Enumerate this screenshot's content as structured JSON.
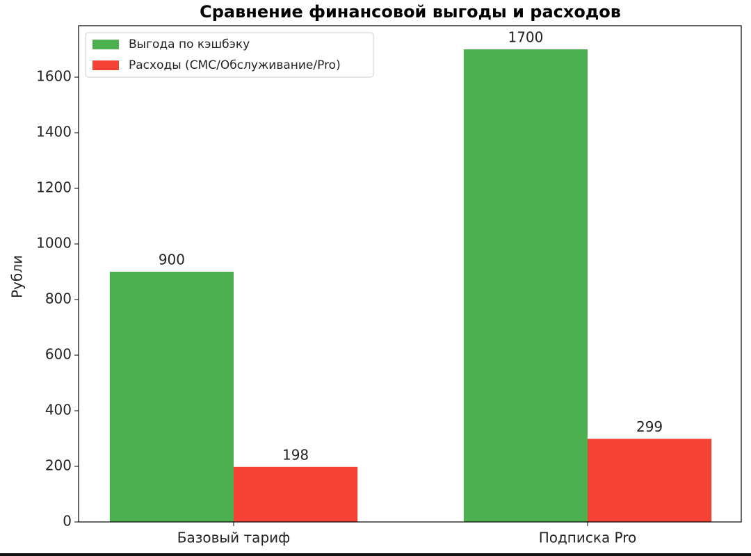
{
  "chart_data": {
    "type": "bar",
    "title": "Сравнение финансовой выгоды и расходов",
    "y_label": "Рубли",
    "categories": [
      "Базовый тариф",
      "Подписка Pro"
    ],
    "series": [
      {
        "name": "Выгода по кэшбэку",
        "color": "#4caf50",
        "values": [
          900,
          1700
        ]
      },
      {
        "name": "Расходы (СМС/Обслуживание/Pro)",
        "color": "#f44336",
        "values": [
          198,
          299
        ]
      }
    ],
    "ylim": [
      0,
      1785
    ],
    "yticks": [
      0,
      200,
      400,
      600,
      800,
      1000,
      1200,
      1400,
      1600
    ],
    "legend": "upper left"
  }
}
